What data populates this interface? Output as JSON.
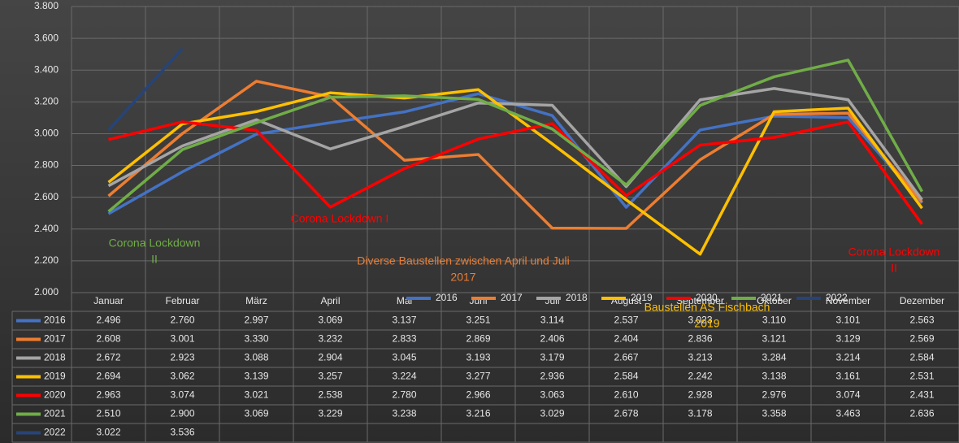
{
  "chart_data": {
    "type": "line",
    "categories": [
      "Januar",
      "Februar",
      "März",
      "April",
      "Mai",
      "Juni",
      "Juli",
      "August",
      "September",
      "Oktober",
      "November",
      "Dezember"
    ],
    "ylim": [
      2000,
      3800
    ],
    "yticks": [
      {
        "value": 2000,
        "label": "2.000"
      },
      {
        "value": 2200,
        "label": "2.200"
      },
      {
        "value": 2400,
        "label": "2.400"
      },
      {
        "value": 2600,
        "label": "2.600"
      },
      {
        "value": 2800,
        "label": "2.800"
      },
      {
        "value": 3000,
        "label": "3.000"
      },
      {
        "value": 3200,
        "label": "3.200"
      },
      {
        "value": 3400,
        "label": "3.400"
      },
      {
        "value": 3600,
        "label": "3.600"
      },
      {
        "value": 3800,
        "label": "3.800"
      }
    ],
    "grid": true,
    "series": [
      {
        "name": "2016",
        "color": "#4472c4",
        "values": [
          2496,
          2760,
          2997,
          3069,
          3137,
          3251,
          3114,
          2537,
          3023,
          3110,
          3101,
          2563
        ],
        "value_labels": [
          "2.496",
          "2.760",
          "2.997",
          "3.069",
          "3.137",
          "3.251",
          "3.114",
          "2.537",
          "3.023",
          "3.110",
          "3.101",
          "2.563"
        ]
      },
      {
        "name": "2017",
        "color": "#ed7d31",
        "values": [
          2608,
          3001,
          3330,
          3232,
          2833,
          2869,
          2406,
          2404,
          2836,
          3121,
          3129,
          2569
        ],
        "value_labels": [
          "2.608",
          "3.001",
          "3.330",
          "3.232",
          "2.833",
          "2.869",
          "2.406",
          "2.404",
          "2.836",
          "3.121",
          "3.129",
          "2.569"
        ]
      },
      {
        "name": "2018",
        "color": "#a5a5a5",
        "values": [
          2672,
          2923,
          3088,
          2904,
          3045,
          3193,
          3179,
          2667,
          3213,
          3284,
          3214,
          2584
        ],
        "value_labels": [
          "2.672",
          "2.923",
          "3.088",
          "2.904",
          "3.045",
          "3.193",
          "3.179",
          "2.667",
          "3.213",
          "3.284",
          "3.214",
          "2.584"
        ]
      },
      {
        "name": "2019",
        "color": "#ffc000",
        "values": [
          2694,
          3062,
          3139,
          3257,
          3224,
          3277,
          2936,
          2584,
          2242,
          3138,
          3161,
          2531
        ],
        "value_labels": [
          "2.694",
          "3.062",
          "3.139",
          "3.257",
          "3.224",
          "3.277",
          "2.936",
          "2.584",
          "2.242",
          "3.138",
          "3.161",
          "2.531"
        ]
      },
      {
        "name": "2020",
        "color": "#ff0000",
        "values": [
          2963,
          3074,
          3021,
          2538,
          2780,
          2966,
          3063,
          2610,
          2928,
          2976,
          3074,
          2431
        ],
        "value_labels": [
          "2.963",
          "3.074",
          "3.021",
          "2.538",
          "2.780",
          "2.966",
          "3.063",
          "2.610",
          "2.928",
          "2.976",
          "3.074",
          "2.431"
        ]
      },
      {
        "name": "2021",
        "color": "#70ad47",
        "values": [
          2510,
          2900,
          3069,
          3229,
          3238,
          3216,
          3029,
          2678,
          3178,
          3358,
          3463,
          2636
        ],
        "value_labels": [
          "2.510",
          "2.900",
          "3.069",
          "3.229",
          "3.238",
          "3.216",
          "3.029",
          "2.678",
          "3.178",
          "3.358",
          "3.463",
          "2.636"
        ]
      },
      {
        "name": "2022",
        "color": "#264478",
        "values": [
          3022,
          3536,
          null,
          null,
          null,
          null,
          null,
          null,
          null,
          null,
          null,
          null
        ],
        "value_labels": [
          "3.022",
          "3.536",
          null,
          null,
          null,
          null,
          null,
          null,
          null,
          null,
          null,
          null
        ]
      }
    ],
    "annotations": [
      {
        "lines": [
          "Corona Lockdown",
          "II"
        ],
        "color": "#70ad47"
      },
      {
        "lines": [
          "Corona Lockdown I"
        ],
        "color": "#ff0000"
      },
      {
        "lines": [
          "Diverse Baustellen zwischen April und Juli",
          "2017"
        ],
        "color": "#ed7d31"
      },
      {
        "lines": [
          "Baustellen AS Fischbach",
          "2019"
        ],
        "color": "#ffc000"
      },
      {
        "lines": [
          "Corona Lockdown",
          "II"
        ],
        "color": "#ff0000"
      }
    ]
  }
}
